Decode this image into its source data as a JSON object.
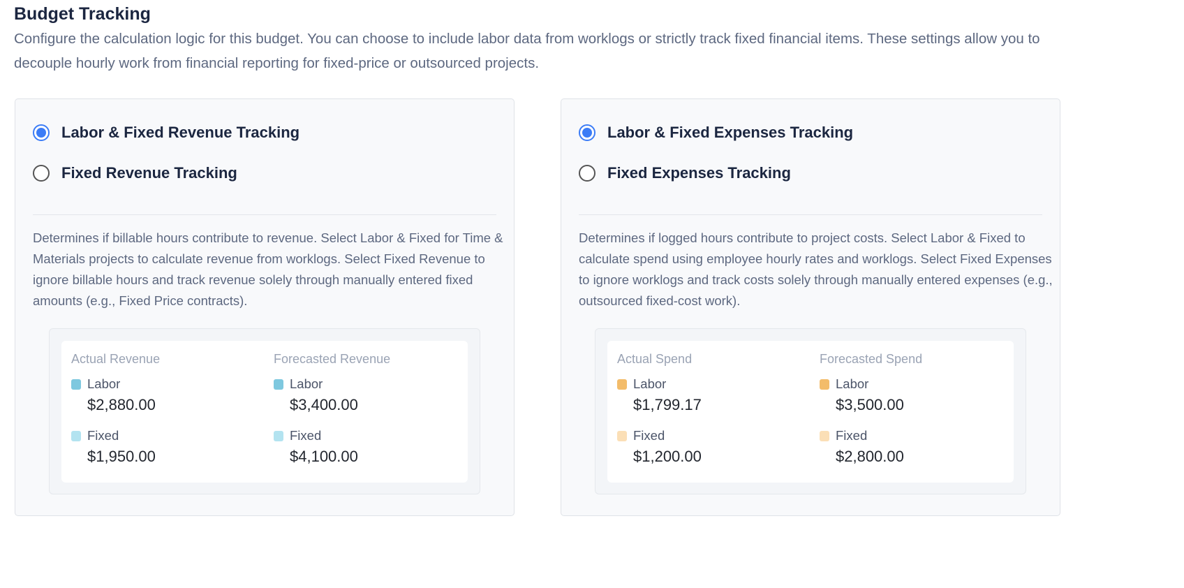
{
  "header": {
    "title": "Budget Tracking",
    "description": "Configure the calculation logic for this budget. You can choose to include labor data from worklogs or strictly track fixed financial items. These settings allow you to decouple hourly work from financial reporting for fixed-price or outsourced projects."
  },
  "revenue": {
    "options": [
      {
        "label": "Labor & Fixed Revenue Tracking",
        "selected": true
      },
      {
        "label": "Fixed Revenue Tracking",
        "selected": false
      }
    ],
    "help": "Determines if billable hours contribute to revenue. Select Labor & Fixed for Time & Materials projects to calculate revenue from worklogs. Select Fixed Revenue to ignore billable hours and track revenue solely through manually entered fixed amounts (e.g., Fixed Price contracts).",
    "columns": [
      {
        "title": "Actual Revenue",
        "labor_label": "Labor",
        "labor_value": "$2,880.00",
        "fixed_label": "Fixed",
        "fixed_value": "$1,950.00"
      },
      {
        "title": "Forecasted Revenue",
        "labor_label": "Labor",
        "labor_value": "$3,400.00",
        "fixed_label": "Fixed",
        "fixed_value": "$4,100.00"
      }
    ],
    "colors": {
      "labor": "#7ec8df",
      "fixed": "#b3e3f0"
    }
  },
  "expenses": {
    "options": [
      {
        "label": "Labor & Fixed Expenses Tracking",
        "selected": true
      },
      {
        "label": "Fixed Expenses Tracking",
        "selected": false
      }
    ],
    "help": "Determines if logged hours contribute to project costs. Select Labor & Fixed to calculate spend using employee hourly rates and worklogs. Select Fixed Expenses to ignore worklogs and track costs solely through manually entered expenses (e.g., outsourced fixed-cost work).",
    "columns": [
      {
        "title": "Actual Spend",
        "labor_label": "Labor",
        "labor_value": "$1,799.17",
        "fixed_label": "Fixed",
        "fixed_value": "$1,200.00"
      },
      {
        "title": "Forecasted Spend",
        "labor_label": "Labor",
        "labor_value": "$3,500.00",
        "fixed_label": "Fixed",
        "fixed_value": "$2,800.00"
      }
    ],
    "colors": {
      "labor": "#f3bc6a",
      "fixed": "#fbdfb6"
    }
  }
}
